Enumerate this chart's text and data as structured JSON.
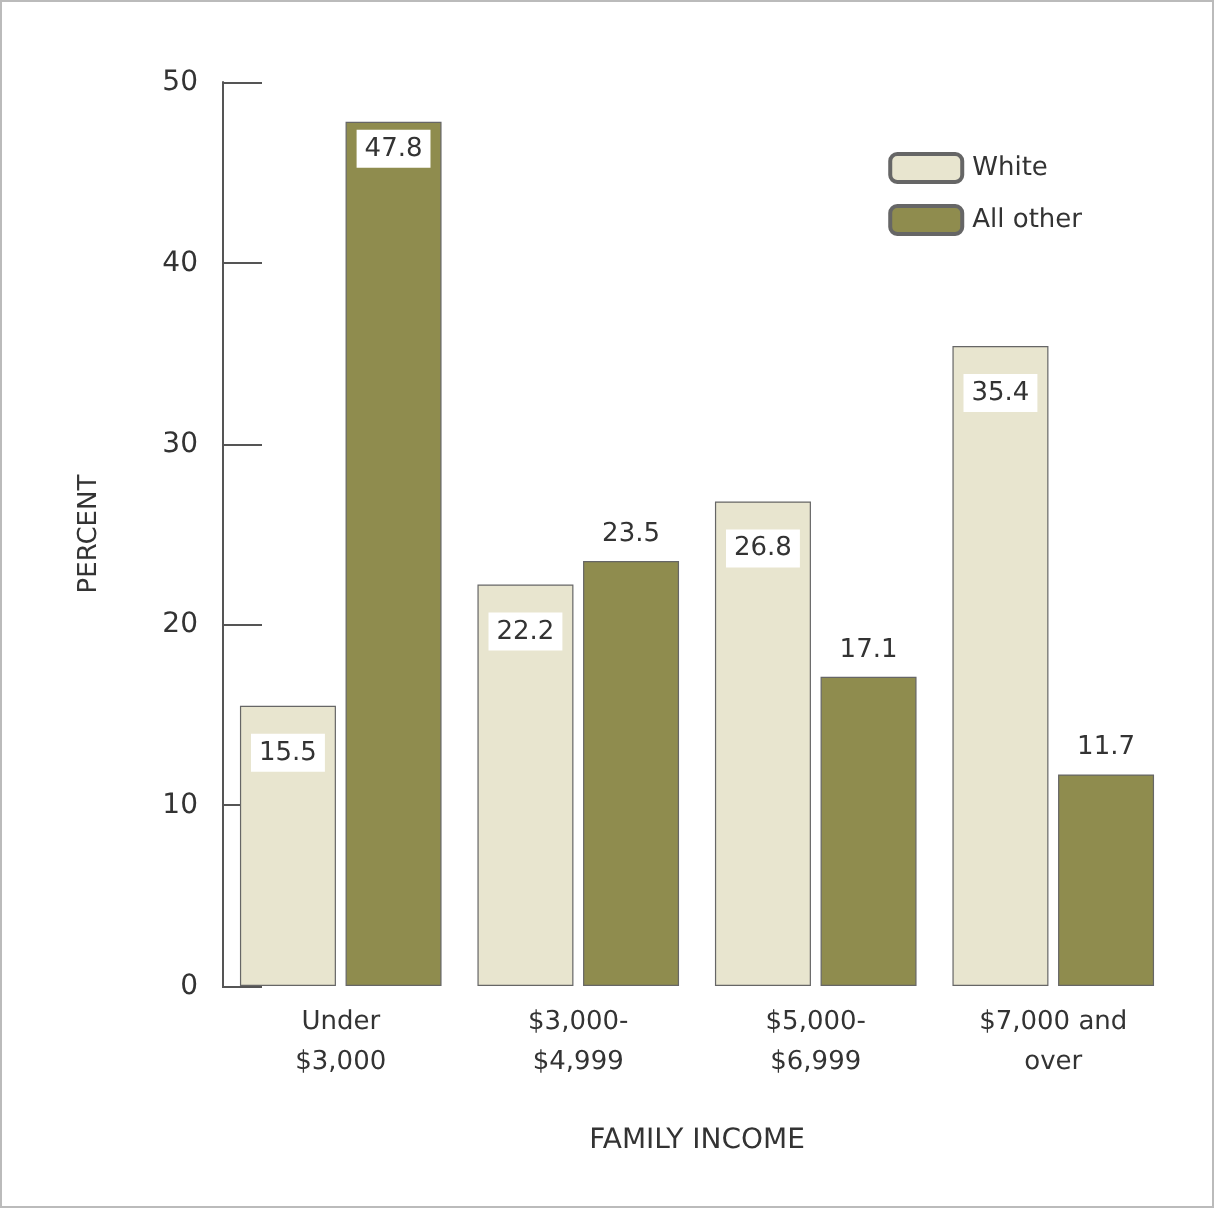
{
  "chart_data": {
    "type": "bar",
    "categories": [
      "Under\n$3,000",
      "$3,000-\n$4,999",
      "$5,000-\n$6,999",
      "$7,000 and\nover"
    ],
    "series": [
      {
        "name": "White",
        "color": "#e8e5cf",
        "values": [
          15.5,
          22.2,
          26.8,
          35.4
        ]
      },
      {
        "name": "All other",
        "color": "#8f8c4e",
        "values": [
          47.8,
          23.5,
          17.1,
          11.7
        ]
      }
    ],
    "xlabel": "FAMILY INCOME",
    "ylabel": "PERCENT",
    "ylim": [
      0,
      50
    ],
    "yticks": [
      0,
      10,
      20,
      30,
      40,
      50
    ],
    "data_labels": true,
    "legend": "top right",
    "grid": false
  }
}
